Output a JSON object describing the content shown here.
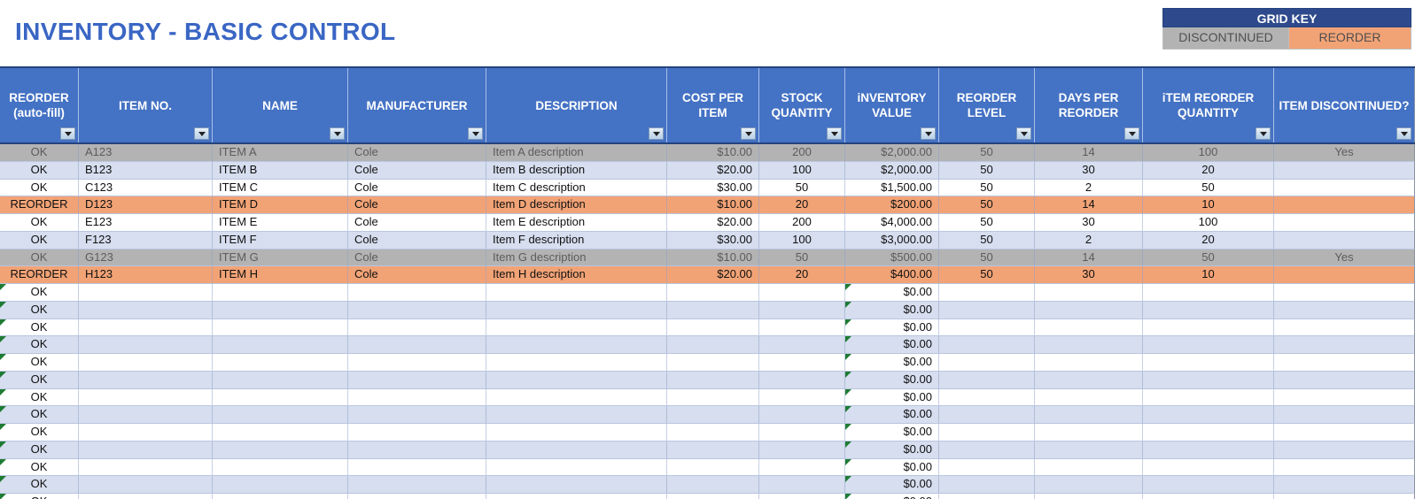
{
  "title": "INVENTORY - BASIC CONTROL",
  "grid_key": {
    "title": "GRID KEY",
    "items": [
      {
        "label": "DISCONTINUED",
        "color": "#B3B3B3"
      },
      {
        "label": "REORDER",
        "color": "#F2A376"
      }
    ]
  },
  "colors": {
    "header_blue": "#4472C4",
    "key_navy": "#2E4A8C",
    "discontinued_gray": "#B3B3B3",
    "reorder_orange": "#F2A376",
    "alt_row_blue": "#D6DEEF",
    "title_blue": "#3A66C4",
    "formula_indicator_green": "#1E7B33"
  },
  "table": {
    "columns": [
      {
        "id": "status",
        "label": "REORDER (auto-fill)"
      },
      {
        "id": "item_no",
        "label": "ITEM NO."
      },
      {
        "id": "name",
        "label": "NAME"
      },
      {
        "id": "manufacturer",
        "label": "MANUFACTURER"
      },
      {
        "id": "description",
        "label": "DESCRIPTION"
      },
      {
        "id": "cost_per_item",
        "label": "COST PER ITEM"
      },
      {
        "id": "stock_quantity",
        "label": "STOCK QUANTITY"
      },
      {
        "id": "inventory_value",
        "label": "iNVENTORY VALUE"
      },
      {
        "id": "reorder_level",
        "label": "REORDER LEVEL"
      },
      {
        "id": "days_per_reorder",
        "label": "DAYS PER REORDER"
      },
      {
        "id": "item_reorder_quantity",
        "label": "iTEM REORDER QUANTITY"
      },
      {
        "id": "item_discontinued",
        "label": "ITEM DISCONTINUED?"
      }
    ],
    "rows": [
      {
        "row_type": "discontinued",
        "status": "OK",
        "item_no": "A123",
        "name": "ITEM A",
        "manufacturer": "Cole",
        "description": "Item A description",
        "cost_per_item": "$10.00",
        "stock_quantity": "200",
        "inventory_value": "$2,000.00",
        "reorder_level": "50",
        "days_per_reorder": "14",
        "item_reorder_quantity": "100",
        "item_discontinued": "Yes"
      },
      {
        "row_type": "alt",
        "status": "OK",
        "item_no": "B123",
        "name": "ITEM B",
        "manufacturer": "Cole",
        "description": "Item B description",
        "cost_per_item": "$20.00",
        "stock_quantity": "100",
        "inventory_value": "$2,000.00",
        "reorder_level": "50",
        "days_per_reorder": "30",
        "item_reorder_quantity": "20",
        "item_discontinued": ""
      },
      {
        "row_type": "plain",
        "status": "OK",
        "item_no": "C123",
        "name": "ITEM C",
        "manufacturer": "Cole",
        "description": "Item C description",
        "cost_per_item": "$30.00",
        "stock_quantity": "50",
        "inventory_value": "$1,500.00",
        "reorder_level": "50",
        "days_per_reorder": "2",
        "item_reorder_quantity": "50",
        "item_discontinued": ""
      },
      {
        "row_type": "reorder",
        "status": "REORDER",
        "item_no": "D123",
        "name": "ITEM D",
        "manufacturer": "Cole",
        "description": "Item D description",
        "cost_per_item": "$10.00",
        "stock_quantity": "20",
        "inventory_value": "$200.00",
        "reorder_level": "50",
        "days_per_reorder": "14",
        "item_reorder_quantity": "10",
        "item_discontinued": ""
      },
      {
        "row_type": "plain",
        "status": "OK",
        "item_no": "E123",
        "name": "ITEM E",
        "manufacturer": "Cole",
        "description": "Item E description",
        "cost_per_item": "$20.00",
        "stock_quantity": "200",
        "inventory_value": "$4,000.00",
        "reorder_level": "50",
        "days_per_reorder": "30",
        "item_reorder_quantity": "100",
        "item_discontinued": ""
      },
      {
        "row_type": "alt",
        "status": "OK",
        "item_no": "F123",
        "name": "ITEM F",
        "manufacturer": "Cole",
        "description": "Item F description",
        "cost_per_item": "$30.00",
        "stock_quantity": "100",
        "inventory_value": "$3,000.00",
        "reorder_level": "50",
        "days_per_reorder": "2",
        "item_reorder_quantity": "20",
        "item_discontinued": ""
      },
      {
        "row_type": "discontinued",
        "status": "OK",
        "item_no": "G123",
        "name": "ITEM G",
        "manufacturer": "Cole",
        "description": "Item G description",
        "cost_per_item": "$10.00",
        "stock_quantity": "50",
        "inventory_value": "$500.00",
        "reorder_level": "50",
        "days_per_reorder": "14",
        "item_reorder_quantity": "50",
        "item_discontinued": "Yes"
      },
      {
        "row_type": "reorder",
        "status": "REORDER",
        "item_no": "H123",
        "name": "ITEM H",
        "manufacturer": "Cole",
        "description": "Item H description",
        "cost_per_item": "$20.00",
        "stock_quantity": "20",
        "inventory_value": "$400.00",
        "reorder_level": "50",
        "days_per_reorder": "30",
        "item_reorder_quantity": "10",
        "item_discontinued": ""
      }
    ],
    "empty_row": {
      "status": "OK",
      "inventory_value": "$0.00"
    },
    "empty_row_count": 13
  }
}
